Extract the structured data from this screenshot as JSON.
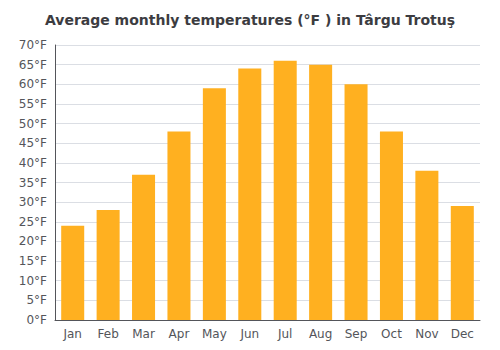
{
  "chart_data": {
    "type": "bar",
    "title": "Average monthly temperatures (°F ) in Târgu Trotuş",
    "categories": [
      "Jan",
      "Feb",
      "Mar",
      "Apr",
      "May",
      "Jun",
      "Jul",
      "Aug",
      "Sep",
      "Oct",
      "Nov",
      "Dec"
    ],
    "values": [
      24,
      28,
      37,
      48,
      59,
      64,
      66,
      65,
      60,
      48,
      38,
      29
    ],
    "color": "#FFB020",
    "ylim": [
      0,
      70
    ],
    "yticks": [
      {
        "value": 0,
        "label": "0°F"
      },
      {
        "value": 5,
        "label": "5°F"
      },
      {
        "value": 10,
        "label": "10°F"
      },
      {
        "value": 15,
        "label": "15°F"
      },
      {
        "value": 20,
        "label": "20°F"
      },
      {
        "value": 25,
        "label": "25°F"
      },
      {
        "value": 30,
        "label": "30°F"
      },
      {
        "value": 35,
        "label": "35°F"
      },
      {
        "value": 40,
        "label": "40°F"
      },
      {
        "value": 45,
        "label": "45°F"
      },
      {
        "value": 50,
        "label": "50°F"
      },
      {
        "value": 55,
        "label": "55°F"
      },
      {
        "value": 60,
        "label": "60°F"
      },
      {
        "value": 65,
        "label": "65°F"
      },
      {
        "value": 70,
        "label": "70°F"
      }
    ],
    "grid": true
  }
}
